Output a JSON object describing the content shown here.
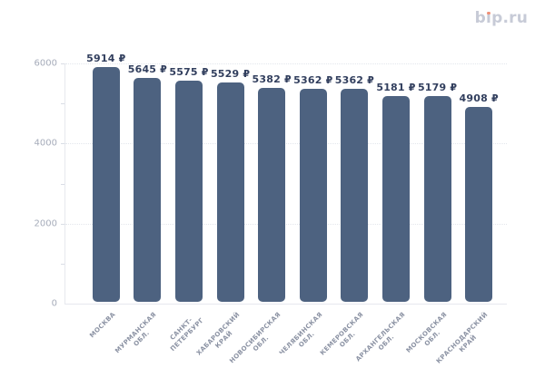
{
  "header": {
    "logo": {
      "text": "bip.ru",
      "pre": "b",
      "i_dotless": "ı",
      "post": "p.ru"
    }
  },
  "chart_data": {
    "type": "bar",
    "title": "",
    "categories": [
      "МОСКВА",
      "МУРМАНСКАЯ\nОБЛ.",
      "САНКТ-\nПЕТЕРБУРГ",
      "ХАБАРОВСКИЙ\nКРАЙ",
      "НОВОСИБИРСКАЯ\nОБЛ.",
      "ЧЕЛЯБИНСКАЯ\nОБЛ.",
      "КЕМЕРОВСКАЯ\nОБЛ.",
      "АРХАНГЕЛЬСКАЯ\nОБЛ.",
      "МОСКОВСКАЯ\nОБЛ.",
      "КРАСНОДАРСКИЙ\nКРАЙ"
    ],
    "values": [
      5914,
      5645,
      5575,
      5529,
      5382,
      5362,
      5362,
      5181,
      5179,
      4908
    ],
    "value_labels": [
      "5914 ₽",
      "5645 ₽",
      "5575 ₽",
      "5529 ₽",
      "5382 ₽",
      "5362 ₽",
      "5362 ₽",
      "5181 ₽",
      "5179 ₽",
      "4908 ₽"
    ],
    "unit": "₽",
    "xlabel": "",
    "ylabel": "",
    "ylim": [
      0,
      6000
    ],
    "ytick_values": [
      0,
      2000,
      4000,
      6000
    ],
    "ytick_labels": [
      "0",
      "2000",
      "4000",
      "6000"
    ],
    "minor_tick_step": 1000,
    "legend": "none",
    "grid": "horizontal-dotted-major",
    "colors": {
      "bar": "#4d6280",
      "value_label": "#323f5e",
      "ytick_label": "#a6acba",
      "category_label": "#8c93a4",
      "gridline": "#e3e6ec",
      "axis_line": "#e6e8ee",
      "tick": "#d9dde5",
      "background": "#ffffff",
      "logo_text": "#c7cbd7",
      "logo_dot": "#f09077"
    }
  }
}
